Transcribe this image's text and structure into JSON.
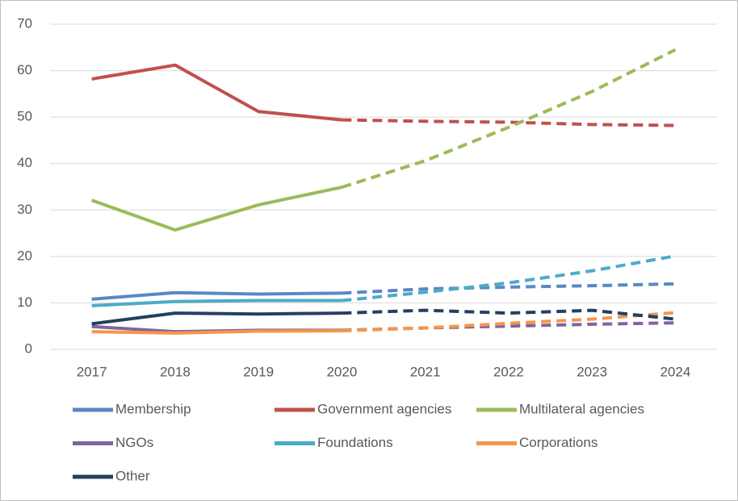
{
  "chart_data": {
    "type": "line",
    "categories": [
      "2017",
      "2018",
      "2019",
      "2020",
      "2021",
      "2022",
      "2023",
      "2024"
    ],
    "dashed_from": "2020",
    "ylim": [
      0,
      70
    ],
    "yticks": [
      0,
      10,
      20,
      30,
      40,
      50,
      60,
      70
    ],
    "grid": true,
    "series": [
      {
        "name": "Membership",
        "color": "#5b87c5",
        "values": [
          10.8,
          12.2,
          11.9,
          12.1,
          13.0,
          13.4,
          13.7,
          14.1
        ]
      },
      {
        "name": "Government agencies",
        "color": "#c0504d",
        "values": [
          58.2,
          61.2,
          51.2,
          49.4,
          49.1,
          48.9,
          48.4,
          48.2
        ]
      },
      {
        "name": "Multilateral agencies",
        "color": "#9bbb59",
        "values": [
          32.1,
          25.7,
          31.1,
          34.9,
          40.6,
          47.8,
          55.5,
          64.5
        ]
      },
      {
        "name": "NGOs",
        "color": "#8064a2",
        "values": [
          4.9,
          3.8,
          4.1,
          4.1,
          4.6,
          5.0,
          5.4,
          5.7
        ]
      },
      {
        "name": "Foundations",
        "color": "#4bacc6",
        "values": [
          9.4,
          10.3,
          10.5,
          10.5,
          12.3,
          14.3,
          16.9,
          20.1
        ]
      },
      {
        "name": "Corporations",
        "color": "#f79646",
        "values": [
          3.8,
          3.5,
          3.9,
          4.0,
          4.6,
          5.6,
          6.5,
          7.9
        ]
      },
      {
        "name": "Other",
        "color": "#243f60",
        "values": [
          5.5,
          7.8,
          7.6,
          7.8,
          8.4,
          7.8,
          8.4,
          6.5
        ]
      }
    ]
  }
}
